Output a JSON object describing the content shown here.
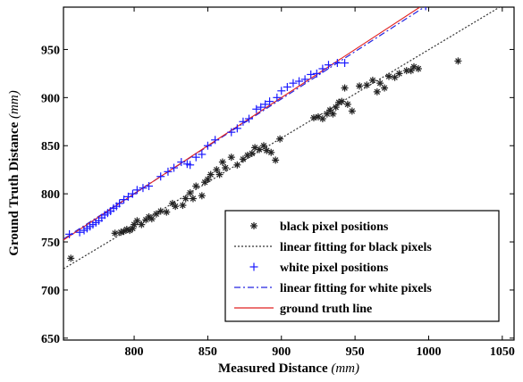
{
  "chart_data": {
    "type": "scatter",
    "title": "",
    "xlabel": "Measured Distance",
    "xlabel_unit": "(mm)",
    "ylabel": "Ground Truth Distance",
    "ylabel_unit": "(mm)",
    "xlim": [
      752,
      1058
    ],
    "ylim": [
      648,
      994
    ],
    "xticks": [
      800,
      850,
      900,
      950,
      1000,
      1050
    ],
    "yticks": [
      650,
      700,
      750,
      800,
      850,
      900,
      950
    ],
    "grid": false,
    "legend_position": "lower-right",
    "colors": {
      "black_points": "#222222",
      "black_fit": "#333333",
      "white_points": "#1a1aff",
      "white_fit": "#2424e0",
      "ground_truth": "#e02020"
    },
    "series": [
      {
        "name": "black pixel positions",
        "kind": "points",
        "marker": "asterisk",
        "points": [
          [
            757,
            733
          ],
          [
            787,
            759
          ],
          [
            791,
            760
          ],
          [
            793,
            761
          ],
          [
            795,
            763
          ],
          [
            797,
            762
          ],
          [
            799,
            764
          ],
          [
            800,
            768
          ],
          [
            802,
            772
          ],
          [
            805,
            768
          ],
          [
            808,
            773
          ],
          [
            810,
            776
          ],
          [
            812,
            774
          ],
          [
            815,
            779
          ],
          [
            818,
            782
          ],
          [
            822,
            781
          ],
          [
            826,
            790
          ],
          [
            828,
            787
          ],
          [
            833,
            788
          ],
          [
            835,
            795
          ],
          [
            838,
            801
          ],
          [
            840,
            795
          ],
          [
            842,
            808
          ],
          [
            846,
            798
          ],
          [
            848,
            812
          ],
          [
            850,
            815
          ],
          [
            852,
            820
          ],
          [
            856,
            825
          ],
          [
            858,
            820
          ],
          [
            860,
            833
          ],
          [
            862,
            827
          ],
          [
            866,
            838
          ],
          [
            870,
            830
          ],
          [
            874,
            836
          ],
          [
            877,
            840
          ],
          [
            880,
            842
          ],
          [
            882,
            848
          ],
          [
            885,
            846
          ],
          [
            888,
            850
          ],
          [
            890,
            845
          ],
          [
            893,
            843
          ],
          [
            896,
            835
          ],
          [
            899,
            857
          ],
          [
            922,
            879
          ],
          [
            925,
            880
          ],
          [
            928,
            878
          ],
          [
            931,
            883
          ],
          [
            933,
            887
          ],
          [
            935,
            883
          ],
          [
            937,
            890
          ],
          [
            939,
            895
          ],
          [
            941,
            896
          ],
          [
            943,
            910
          ],
          [
            945,
            893
          ],
          [
            948,
            886
          ],
          [
            953,
            912
          ],
          [
            958,
            913
          ],
          [
            962,
            918
          ],
          [
            965,
            906
          ],
          [
            967,
            915
          ],
          [
            970,
            910
          ],
          [
            973,
            922
          ],
          [
            977,
            921
          ],
          [
            980,
            925
          ],
          [
            985,
            928
          ],
          [
            988,
            928
          ],
          [
            990,
            932
          ],
          [
            993,
            930
          ],
          [
            1020,
            938
          ]
        ]
      },
      {
        "name": "linear fitting for black pixels",
        "kind": "line",
        "style": "dotted",
        "points": [
          [
            752,
            722
          ],
          [
            1058,
            1003
          ]
        ]
      },
      {
        "name": "white pixel positions",
        "kind": "points",
        "marker": "plus",
        "points": [
          [
            756,
            758
          ],
          [
            763,
            760
          ],
          [
            766,
            762
          ],
          [
            768,
            764
          ],
          [
            770,
            766
          ],
          [
            772,
            768
          ],
          [
            774,
            770
          ],
          [
            776,
            772
          ],
          [
            778,
            775
          ],
          [
            780,
            778
          ],
          [
            782,
            780
          ],
          [
            784,
            782
          ],
          [
            786,
            785
          ],
          [
            788,
            787
          ],
          [
            790,
            790
          ],
          [
            793,
            794
          ],
          [
            796,
            797
          ],
          [
            799,
            800
          ],
          [
            802,
            804
          ],
          [
            806,
            806
          ],
          [
            810,
            808
          ],
          [
            818,
            818
          ],
          [
            823,
            823
          ],
          [
            827,
            827
          ],
          [
            832,
            833
          ],
          [
            836,
            831
          ],
          [
            838,
            830
          ],
          [
            842,
            838
          ],
          [
            846,
            841
          ],
          [
            850,
            850
          ],
          [
            855,
            856
          ],
          [
            866,
            864
          ],
          [
            870,
            868
          ],
          [
            874,
            875
          ],
          [
            878,
            878
          ],
          [
            883,
            888
          ],
          [
            886,
            890
          ],
          [
            889,
            893
          ],
          [
            892,
            896
          ],
          [
            897,
            900
          ],
          [
            900,
            907
          ],
          [
            904,
            911
          ],
          [
            908,
            915
          ],
          [
            912,
            917
          ],
          [
            916,
            919
          ],
          [
            920,
            924
          ],
          [
            924,
            925
          ],
          [
            928,
            930
          ],
          [
            932,
            934
          ],
          [
            938,
            936
          ],
          [
            943,
            936
          ],
          [
            998,
            995
          ]
        ]
      },
      {
        "name": "linear fitting for white pixels",
        "kind": "line",
        "style": "dashdot",
        "points": [
          [
            752,
            753
          ],
          [
            1000,
            997
          ]
        ]
      },
      {
        "name": "ground truth line",
        "kind": "line",
        "style": "solid",
        "points": [
          [
            752,
            752
          ],
          [
            994,
            994
          ]
        ]
      }
    ]
  }
}
